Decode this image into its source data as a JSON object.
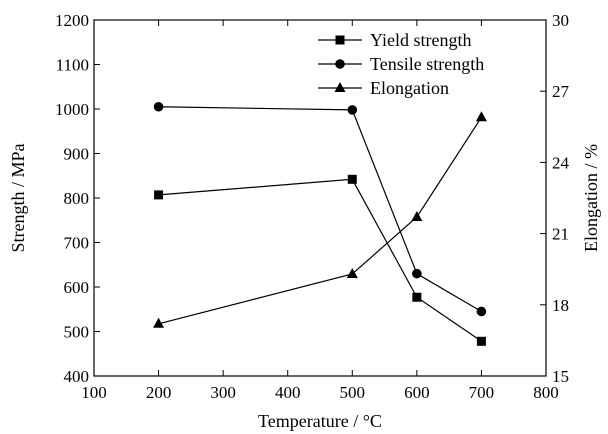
{
  "chart_data": {
    "type": "line",
    "xlabel": "Temperature / °C",
    "ylabel_left": "Strength / MPa",
    "ylabel_right": "Elongation / %",
    "xlim": [
      100,
      800
    ],
    "ylim_left": [
      400,
      1200
    ],
    "ylim_right": [
      15,
      30
    ],
    "x_ticks": [
      100,
      200,
      300,
      400,
      500,
      600,
      700,
      800
    ],
    "y_left_ticks": [
      400,
      500,
      600,
      700,
      800,
      900,
      1000,
      1100,
      1200
    ],
    "y_right_ticks": [
      15,
      18,
      21,
      24,
      27,
      30
    ],
    "grid": false,
    "legend_position": "top-right",
    "series": [
      {
        "name": "Yield strength",
        "axis": "left",
        "marker": "square",
        "x": [
          200,
          500,
          600,
          700
        ],
        "y": [
          807,
          842,
          577,
          478
        ]
      },
      {
        "name": "Tensile strength",
        "axis": "left",
        "marker": "circle",
        "x": [
          200,
          500,
          600,
          700
        ],
        "y": [
          1005,
          998,
          630,
          545
        ]
      },
      {
        "name": "Elongation",
        "axis": "right",
        "marker": "triangle",
        "x": [
          200,
          500,
          600,
          700
        ],
        "y": [
          17.2,
          19.3,
          21.7,
          25.9
        ]
      }
    ]
  }
}
